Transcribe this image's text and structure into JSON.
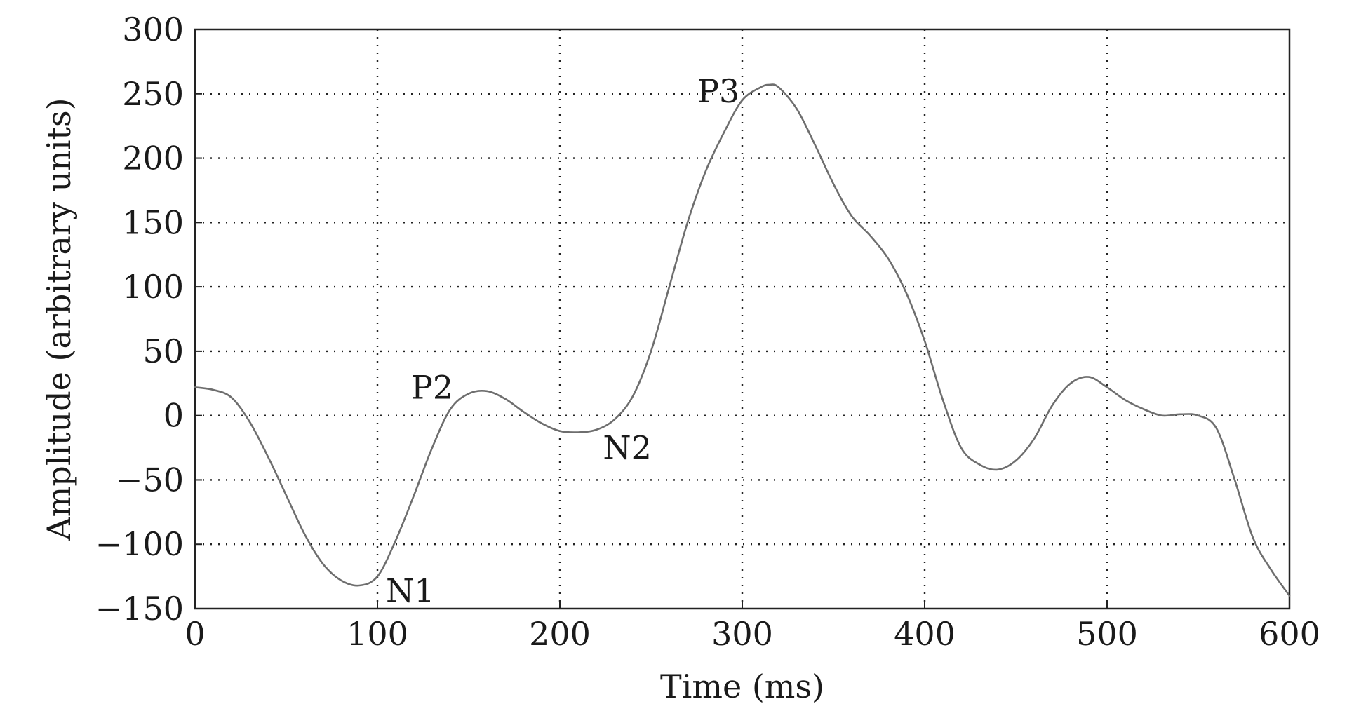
{
  "chart_data": {
    "type": "line",
    "xlabel": "Time (ms)",
    "ylabel": "Amplitude (arbitrary units)",
    "xlim": [
      0,
      600
    ],
    "ylim": [
      -150,
      300
    ],
    "x_ticks": [
      0,
      100,
      200,
      300,
      400,
      500,
      600
    ],
    "y_ticks": [
      300,
      250,
      200,
      150,
      100,
      50,
      0,
      -50,
      -100,
      -150
    ],
    "grid": true,
    "grid_style": "dotted",
    "line_color": "#6e6e6e",
    "series": [
      {
        "x": [
          0,
          10,
          20,
          30,
          40,
          50,
          60,
          70,
          80,
          90,
          100,
          110,
          120,
          130,
          140,
          150,
          160,
          170,
          180,
          190,
          200,
          210,
          220,
          230,
          240,
          250,
          260,
          270,
          280,
          290,
          300,
          310,
          315,
          320,
          330,
          340,
          350,
          360,
          370,
          380,
          390,
          400,
          410,
          420,
          430,
          440,
          450,
          460,
          470,
          480,
          490,
          500,
          510,
          520,
          530,
          540,
          550,
          560,
          570,
          580,
          590,
          600
        ],
        "y": [
          22,
          20,
          14,
          -5,
          -32,
          -62,
          -92,
          -115,
          -128,
          -132,
          -125,
          -97,
          -62,
          -25,
          5,
          17,
          19,
          13,
          3,
          -6,
          -12,
          -13,
          -11,
          -3,
          15,
          50,
          100,
          150,
          190,
          220,
          245,
          255,
          257,
          255,
          238,
          210,
          180,
          155,
          140,
          122,
          95,
          58,
          12,
          -25,
          -38,
          -42,
          -35,
          -18,
          8,
          25,
          30,
          22,
          12,
          5,
          0,
          1,
          0,
          -10,
          -50,
          -95,
          -120,
          -140
        ]
      }
    ],
    "annotations": [
      {
        "text": "P3",
        "x": 287,
        "y": 252
      },
      {
        "text": "P2",
        "x": 130,
        "y": 22
      },
      {
        "text": "N2",
        "x": 237,
        "y": -25
      },
      {
        "text": "N1",
        "x": 118,
        "y": -136
      }
    ]
  }
}
